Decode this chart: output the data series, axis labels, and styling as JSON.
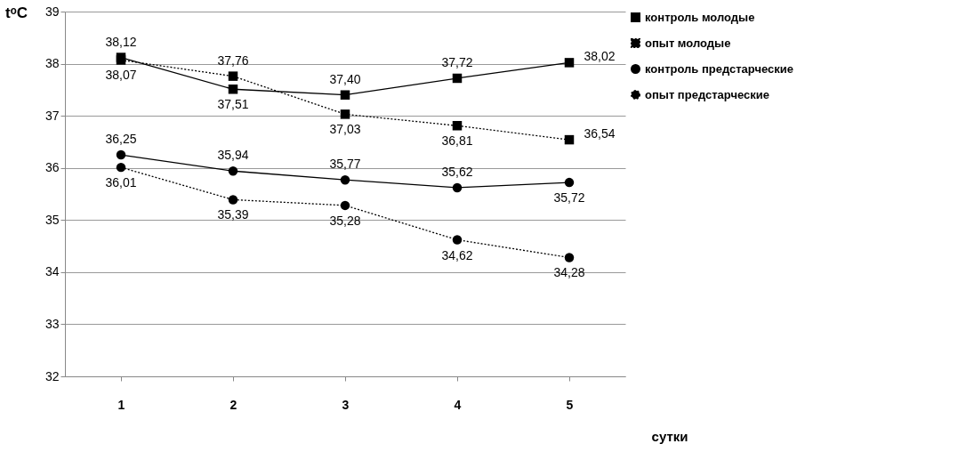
{
  "chart_data": {
    "type": "line",
    "ylabel": "tᵒC",
    "xlabel": "сутки",
    "categories": [
      "1",
      "2",
      "3",
      "4",
      "5"
    ],
    "ylim": [
      32,
      39
    ],
    "yticks": [
      32,
      33,
      34,
      35,
      36,
      37,
      38,
      39
    ],
    "grid": "y",
    "legend": "right",
    "series": [
      {
        "name": "контроль молодые",
        "color": "#000000",
        "marker": "square",
        "line_style": "solid",
        "values": [
          38.12,
          37.51,
          37.4,
          37.72,
          38.02
        ],
        "value_labels": [
          "38,12",
          "37,51",
          "37,40",
          "37,72",
          "38,02"
        ]
      },
      {
        "name": "опыт молодые",
        "color": "#000000",
        "marker": "square",
        "line_style": "dotted",
        "values": [
          38.07,
          37.76,
          37.03,
          36.81,
          36.54
        ],
        "value_labels": [
          "38,07",
          "37,76",
          "37,03",
          "36,81",
          "36,54"
        ]
      },
      {
        "name": "контроль предстарческие",
        "color": "#000000",
        "marker": "circle",
        "line_style": "solid",
        "values": [
          36.25,
          35.94,
          35.77,
          35.62,
          35.72
        ],
        "value_labels": [
          "36,25",
          "35,94",
          "35,77",
          "35,62",
          "35,72"
        ]
      },
      {
        "name": "опыт предстарческие",
        "color": "#000000",
        "marker": "circle",
        "line_style": "dotted",
        "values": [
          36.01,
          35.39,
          35.28,
          34.62,
          34.28
        ],
        "value_labels": [
          "36,01",
          "35,39",
          "35,28",
          "34,62",
          "34,28"
        ]
      }
    ]
  }
}
